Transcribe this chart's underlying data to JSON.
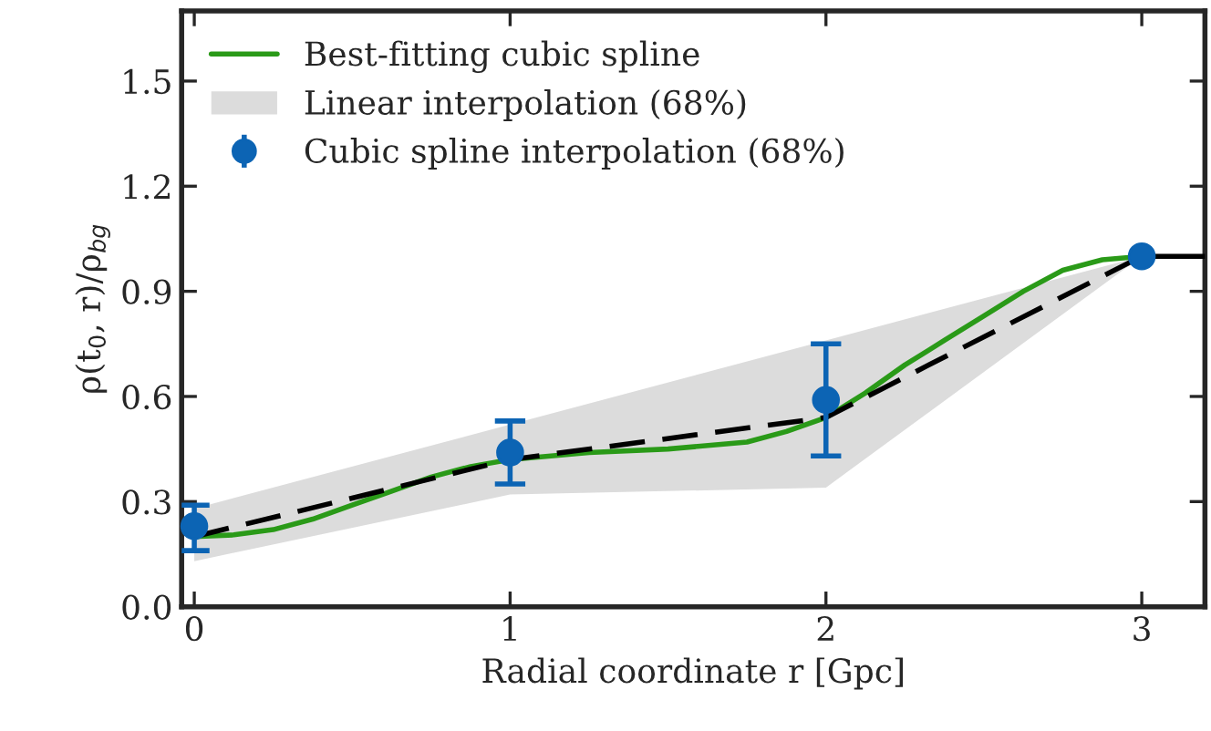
{
  "chart_data": {
    "type": "line",
    "xlabel": "Radial coordinate r [Gpc]",
    "ylabel": "ρ(t$_{0}$, r)/ρ$_{bg}$",
    "xlim": [
      -0.04,
      3.2
    ],
    "ylim": [
      0.0,
      1.7
    ],
    "xticks": [
      0,
      1,
      2,
      3
    ],
    "yticks": [
      {
        "value": 0,
        "label": "0.0"
      },
      0.3,
      0.6,
      0.9,
      1.2,
      1.5
    ],
    "grid": false,
    "legend": "top left",
    "series": [
      {
        "name": "Best-fitting cubic spline",
        "color": "#2a9a18",
        "line_style": "solid",
        "marker": "none",
        "x": [
          0,
          0.125,
          0.25,
          0.375,
          0.5,
          0.625,
          0.75,
          0.875,
          1,
          1.25,
          1.5,
          1.75,
          1.875,
          2,
          2.125,
          2.25,
          2.375,
          2.5,
          2.625,
          2.75,
          2.875,
          3
        ],
        "values": [
          0.2,
          0.205,
          0.22,
          0.25,
          0.29,
          0.33,
          0.37,
          0.4,
          0.42,
          0.44,
          0.45,
          0.47,
          0.5,
          0.54,
          0.61,
          0.69,
          0.76,
          0.83,
          0.9,
          0.96,
          0.99,
          1.0
        ]
      },
      {
        "name": "Linear interpolation (68%)",
        "type": "line",
        "color": "#dcdcdc",
        "x": [
          0,
          1,
          2,
          3
        ],
        "values": [
          null,
          null,
          null,
          null
        ],
        "lower": [
          0.13,
          0.32,
          0.34,
          1.0
        ],
        "upper": [
          0.28,
          0.52,
          0.76,
          1.0
        ]
      },
      {
        "color": "#000000",
        "line_style": "dashed",
        "marker": "none",
        "x": [
          0,
          1,
          2,
          3
        ],
        "values": [
          0.2,
          0.42,
          0.54,
          1.0
        ]
      },
      {
        "color": "#000000",
        "line_style": "solid",
        "marker": "none",
        "x": [
          3,
          3.2
        ],
        "values": [
          1.0,
          1.0
        ]
      },
      {
        "name": "Cubic spline interpolation (68%)",
        "type": "scatter",
        "color": "#0c64b4",
        "marker": "circle",
        "x": [
          0,
          1,
          2,
          3
        ],
        "values": [
          0.23,
          0.44,
          0.59,
          1.0
        ],
        "errors": [
          [
            0.16,
            0.29
          ],
          [
            0.35,
            0.53
          ],
          [
            0.43,
            0.75
          ],
          null
        ]
      }
    ]
  }
}
